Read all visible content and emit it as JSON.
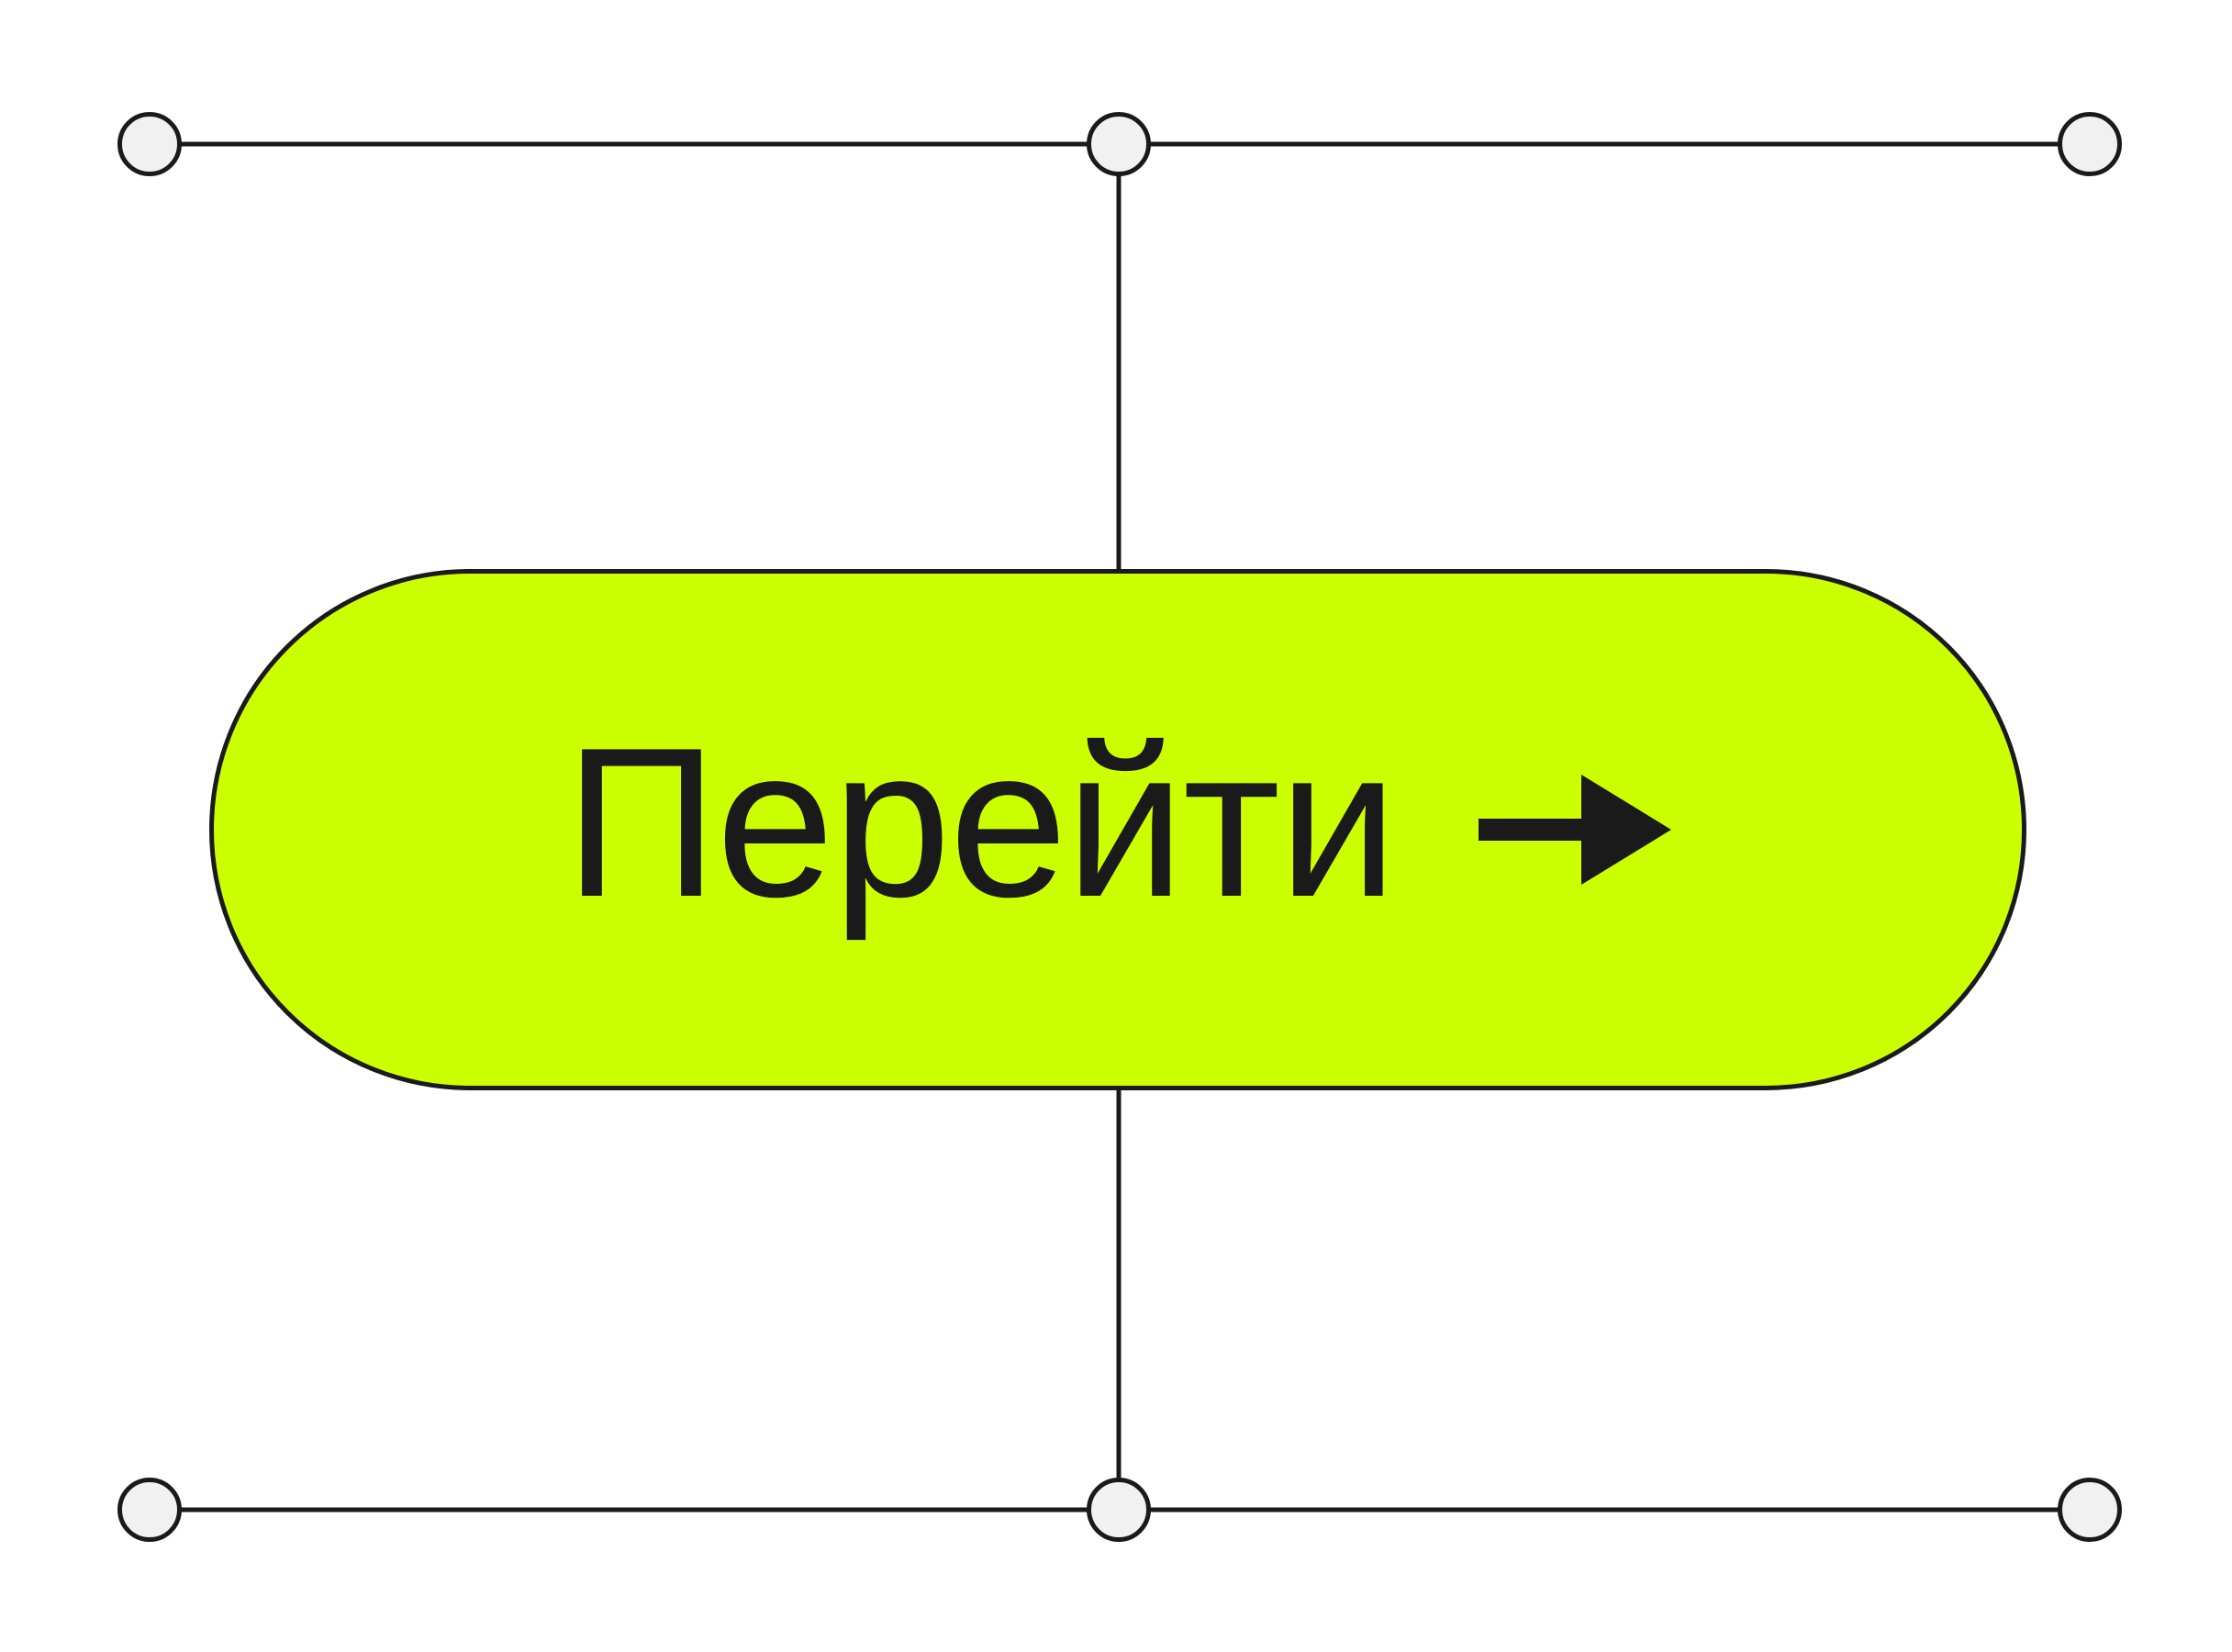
{
  "colors": {
    "background": "#ffffff",
    "accent": "#ccff00",
    "ink": "#1a1a1a",
    "node_fill": "#f1f1f1"
  },
  "button": {
    "label": "Перейти",
    "icon": "arrow-right-icon"
  }
}
